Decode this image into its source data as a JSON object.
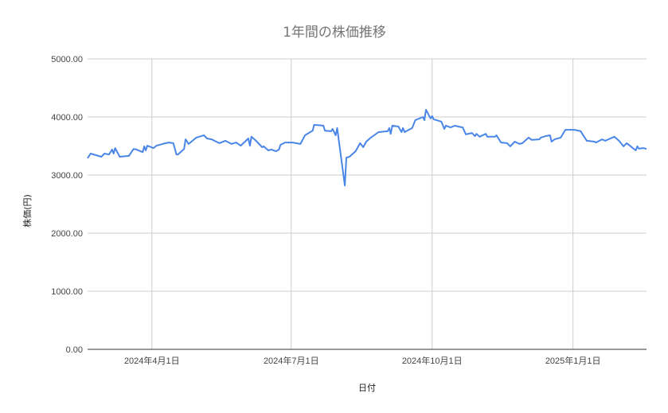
{
  "chart_data": {
    "type": "line",
    "title": "1年間の株価推移",
    "xlabel": "日付",
    "ylabel": "株価(円)",
    "xlim": [
      "2024-02-19",
      "2025-02-18"
    ],
    "ylim": [
      0,
      5000
    ],
    "yticks": [
      0,
      1000,
      2000,
      3000,
      4000,
      5000
    ],
    "ytick_labels": [
      "0.00",
      "1000.00",
      "2000.00",
      "3000.00",
      "4000.00",
      "5000.00"
    ],
    "xticks": [
      "2024-04-01",
      "2024-07-01",
      "2024-10-01",
      "2025-01-01"
    ],
    "xtick_labels": [
      "2024年4月1日",
      "2024年7月1日",
      "2024年10月1日",
      "2025年1月1日"
    ],
    "grid": true,
    "legend": "none",
    "color": "#4a86e8",
    "x": [
      "2024-02-19",
      "2024-02-21",
      "2024-02-28",
      "2024-03-01",
      "2024-03-04",
      "2024-03-06",
      "2024-03-07",
      "2024-03-08",
      "2024-03-11",
      "2024-03-17",
      "2024-03-20",
      "2024-03-22",
      "2024-03-26",
      "2024-03-27",
      "2024-03-28",
      "2024-03-29",
      "2024-04-02",
      "2024-04-04",
      "2024-04-08",
      "2024-04-12",
      "2024-04-15",
      "2024-04-17",
      "2024-04-18",
      "2024-04-22",
      "2024-04-23",
      "2024-04-25",
      "2024-04-30",
      "2024-05-05",
      "2024-05-07",
      "2024-05-10",
      "2024-05-15",
      "2024-05-19",
      "2024-05-23",
      "2024-05-26",
      "2024-05-29",
      "2024-06-03",
      "2024-06-04",
      "2024-06-05",
      "2024-06-08",
      "2024-06-12",
      "2024-06-13",
      "2024-06-16",
      "2024-06-18",
      "2024-06-21",
      "2024-06-23",
      "2024-06-24",
      "2024-06-27",
      "2024-07-02",
      "2024-07-04",
      "2024-07-07",
      "2024-07-10",
      "2024-07-15",
      "2024-07-16",
      "2024-07-22",
      "2024-07-23",
      "2024-07-27",
      "2024-07-28",
      "2024-07-30",
      "2024-07-31",
      "2024-08-05",
      "2024-08-06",
      "2024-08-08",
      "2024-08-12",
      "2024-08-15",
      "2024-08-17",
      "2024-08-19",
      "2024-08-22",
      "2024-08-27",
      "2024-09-02",
      "2024-09-03",
      "2024-09-04",
      "2024-09-05",
      "2024-09-09",
      "2024-09-11",
      "2024-09-12",
      "2024-09-13",
      "2024-09-18",
      "2024-09-20",
      "2024-09-25",
      "2024-09-26",
      "2024-09-27",
      "2024-09-30",
      "2024-10-01",
      "2024-10-02",
      "2024-10-07",
      "2024-10-09",
      "2024-10-10",
      "2024-10-13",
      "2024-10-16",
      "2024-10-18",
      "2024-10-21",
      "2024-10-23",
      "2024-10-27",
      "2024-10-29",
      "2024-10-30",
      "2024-11-01",
      "2024-11-05",
      "2024-11-06",
      "2024-11-11",
      "2024-11-12",
      "2024-11-15",
      "2024-11-19",
      "2024-11-21",
      "2024-11-24",
      "2024-11-27",
      "2024-11-29",
      "2024-12-03",
      "2024-12-05",
      "2024-12-10",
      "2024-12-11",
      "2024-12-14",
      "2024-12-17",
      "2024-12-18",
      "2024-12-20",
      "2024-12-24",
      "2024-12-27",
      "2025-01-02",
      "2025-01-06",
      "2025-01-10",
      "2025-01-15",
      "2025-01-16",
      "2025-01-20",
      "2025-01-22",
      "2025-01-28",
      "2025-01-31",
      "2025-02-03",
      "2025-02-05",
      "2025-02-07",
      "2025-02-11",
      "2025-02-12",
      "2025-02-13",
      "2025-02-16",
      "2025-02-18"
    ],
    "series": [
      {
        "values": [
          3290,
          3370,
          3315,
          3370,
          3355,
          3440,
          3370,
          3465,
          3315,
          3330,
          3450,
          3440,
          3395,
          3495,
          3425,
          3505,
          3465,
          3505,
          3535,
          3560,
          3550,
          3355,
          3355,
          3450,
          3615,
          3535,
          3645,
          3685,
          3630,
          3615,
          3550,
          3590,
          3535,
          3560,
          3505,
          3630,
          3505,
          3660,
          3590,
          3480,
          3495,
          3425,
          3440,
          3410,
          3440,
          3520,
          3560,
          3560,
          3550,
          3535,
          3685,
          3765,
          3865,
          3850,
          3765,
          3755,
          3795,
          3685,
          3810,
          2820,
          3300,
          3315,
          3410,
          3550,
          3480,
          3575,
          3645,
          3740,
          3755,
          3810,
          3710,
          3850,
          3835,
          3740,
          3810,
          3740,
          3810,
          3945,
          4000,
          3945,
          4125,
          3975,
          4015,
          3960,
          3920,
          3795,
          3850,
          3820,
          3850,
          3835,
          3820,
          3700,
          3725,
          3670,
          3710,
          3660,
          3710,
          3660,
          3660,
          3685,
          3560,
          3550,
          3495,
          3575,
          3535,
          3550,
          3645,
          3605,
          3615,
          3645,
          3670,
          3685,
          3575,
          3615,
          3645,
          3780,
          3780,
          3755,
          3590,
          3575,
          3560,
          3615,
          3590,
          3660,
          3590,
          3495,
          3550,
          3510,
          3425,
          3495,
          3455,
          3465,
          3450
        ]
      }
    ]
  }
}
